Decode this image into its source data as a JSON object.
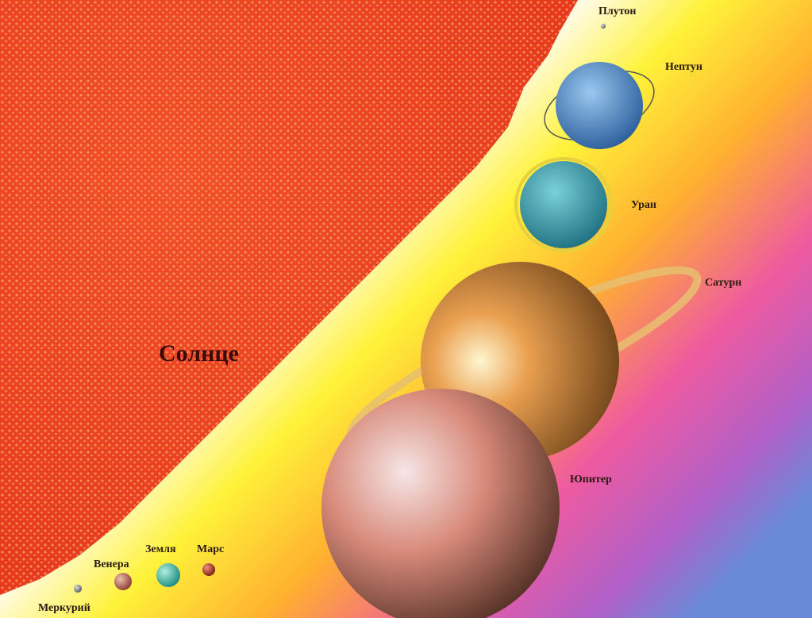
{
  "sun": "Солнце",
  "planets": [
    {
      "name": "Меркурий"
    },
    {
      "name": "Венера"
    },
    {
      "name": "Земля"
    },
    {
      "name": "Марс"
    },
    {
      "name": "Юпитер"
    },
    {
      "name": "Сатурн"
    },
    {
      "name": "Уран"
    },
    {
      "name": "Нептун"
    },
    {
      "name": "Плутон"
    }
  ]
}
